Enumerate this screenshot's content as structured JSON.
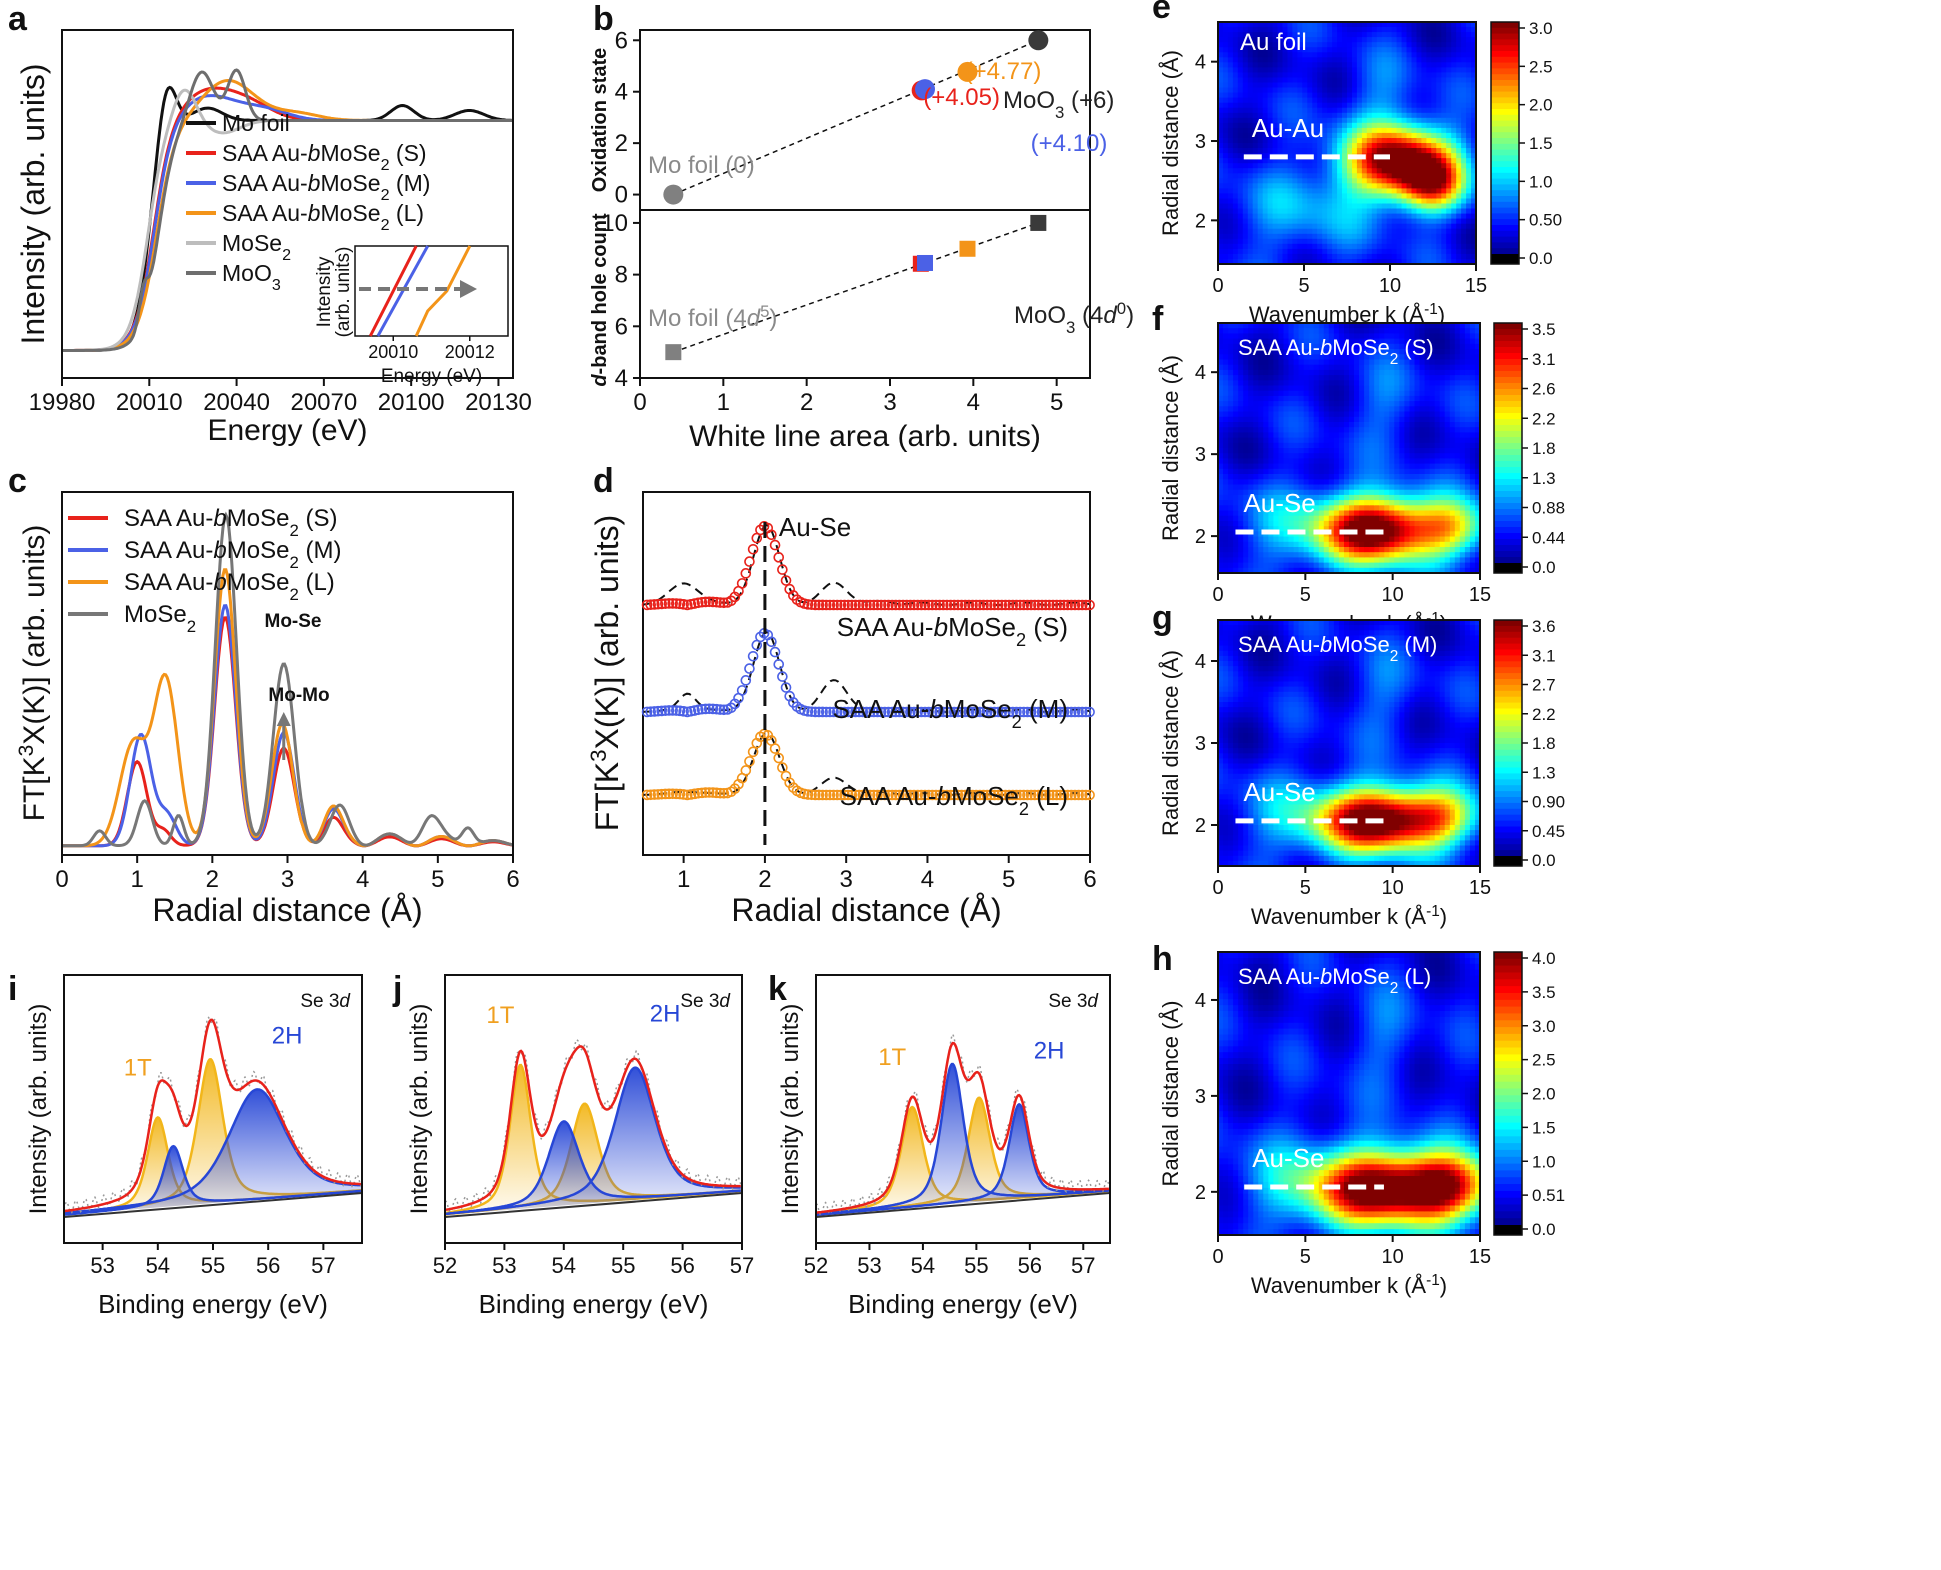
{
  "figure": {
    "panels": [
      "a",
      "b",
      "c",
      "d",
      "e",
      "f",
      "g",
      "h",
      "i",
      "j",
      "k"
    ]
  },
  "colors": {
    "red": "#e8221b",
    "blue": "#4b61e6",
    "orange": "#f39419",
    "gray_light": "#bdbdbd",
    "gray_dark": "#6e6e6e",
    "black": "#111111",
    "xps_gold": "#f2b61a",
    "xps_blue": "#2747d6"
  },
  "chart_data": [
    {
      "id": "a",
      "type": "line",
      "letter": "a",
      "xlabel": "Energy (eV)",
      "ylabel": "Intensity (arb. units)",
      "xticks": [
        "19980",
        "20010",
        "20040",
        "20070",
        "20100",
        "20130"
      ],
      "xlim": [
        19980,
        20135
      ],
      "legend": [
        "Mo foil",
        "SAA Au-bMoSe2 (S)",
        "SAA Au-bMoSe2 (M)",
        "SAA Au-bMoSe2 (L)",
        "MoSe2",
        "MoO3"
      ],
      "legend_display": [
        {
          "pre": "Mo foil",
          "sub": "",
          "post": ""
        },
        {
          "pre": "SAA Au-",
          "it": "b",
          "mid": "MoSe",
          "sub": "2",
          "post": " (S)"
        },
        {
          "pre": "SAA Au-",
          "it": "b",
          "mid": "MoSe",
          "sub": "2",
          "post": " (M)"
        },
        {
          "pre": "SAA Au-",
          "it": "b",
          "mid": "MoSe",
          "sub": "2",
          "post": " (L)"
        },
        {
          "pre": "MoSe",
          "sub": "2",
          "post": ""
        },
        {
          "pre": "MoO",
          "sub": "3",
          "post": ""
        }
      ],
      "inset": {
        "xlabel": "Energy (eV)",
        "ylabel": "Intensity (arb. units)",
        "xticks": [
          "20010",
          "20012"
        ]
      }
    },
    {
      "id": "b",
      "type": "scatter",
      "letter": "b",
      "xlabel": "White line area (arb. units)",
      "xticks": [
        "0",
        "1",
        "2",
        "3",
        "4",
        "5"
      ],
      "xlim": [
        0,
        5.4
      ],
      "top": {
        "ylabel": "Oxidation state",
        "ylim": [
          -0.6,
          6.4
        ],
        "yticks": [
          "0",
          "2",
          "4",
          "6"
        ],
        "points": [
          {
            "name": "Mo foil",
            "x": 0.4,
            "y": 0
          },
          {
            "name": "SAA Au-bMoSe2 (S)",
            "x": 3.38,
            "y": 4.05
          },
          {
            "name": "SAA Au-bMoSe2 (M)",
            "x": 3.42,
            "y": 4.1
          },
          {
            "name": "SAA Au-bMoSe2 (L)",
            "x": 3.93,
            "y": 4.77
          },
          {
            "name": "MoO3",
            "x": 4.78,
            "y": 6
          }
        ],
        "labels": [
          "Mo foil (0)",
          "(+4.05)",
          "(+4.77)",
          "(+4.10)",
          "MoO3 (+6)"
        ]
      },
      "bottom": {
        "ylabel": "d-band hole count",
        "ylim": [
          4,
          10.5
        ],
        "yticks": [
          "4",
          "6",
          "8",
          "10"
        ],
        "points": [
          {
            "name": "Mo foil",
            "x": 0.4,
            "y": 5
          },
          {
            "name": "SAA Au-bMoSe2 (S)",
            "x": 3.37,
            "y": 8.42
          },
          {
            "name": "SAA Au-bMoSe2 (M)",
            "x": 3.42,
            "y": 8.45
          },
          {
            "name": "SAA Au-bMoSe2 (L)",
            "x": 3.93,
            "y": 9.0
          },
          {
            "name": "MoO3",
            "x": 4.78,
            "y": 10
          }
        ],
        "labels": [
          "Mo foil (4d5)",
          "MoO3 (4d0)"
        ]
      }
    },
    {
      "id": "c",
      "type": "line",
      "letter": "c",
      "xlabel": "Radial distance (Å)",
      "ylabel": "FT[K3X(K)] (arb. units)",
      "xticks": [
        "0",
        "1",
        "2",
        "3",
        "4",
        "5",
        "6"
      ],
      "xlim": [
        0,
        6
      ],
      "legend": [
        "SAA Au-bMoSe2 (S)",
        "SAA Au-bMoSe2 (M)",
        "SAA Au-bMoSe2 (L)",
        "MoSe2"
      ],
      "annotations": [
        "Mo-Se",
        "Mo-Mo"
      ]
    },
    {
      "id": "d",
      "type": "line",
      "letter": "d",
      "xlabel": "Radial distance (Å)",
      "ylabel": "FT[K3X(K)] (arb. units)",
      "xticks": [
        "1",
        "2",
        "3",
        "4",
        "5",
        "6"
      ],
      "xlim": [
        0.5,
        6
      ],
      "series": [
        "SAA Au-bMoSe2 (S)",
        "SAA Au-bMoSe2 (M)",
        "SAA Au-bMoSe2 (L)"
      ],
      "annotations": [
        "Au-Se"
      ]
    },
    {
      "id": "e",
      "type": "heatmap",
      "letter": "e",
      "title": "Au foil",
      "bond": "Au-Au",
      "bond_r": 2.8,
      "bond_k": [
        1.5,
        10
      ],
      "xlabel": "Wavenumber k (Å-1)",
      "ylabel": "Radial distance (Å)",
      "xticks": [
        "0",
        "5",
        "10",
        "15"
      ],
      "yticks": [
        "2",
        "3",
        "4"
      ],
      "xlim": [
        0,
        15
      ],
      "ylim": [
        1.45,
        4.5
      ],
      "colorbar": [
        "3.0",
        "2.5",
        "2.0",
        "1.5",
        "1.0",
        "0.50",
        "0.0"
      ],
      "peaks": [
        {
          "k": 10.5,
          "r": 2.75,
          "a": 1.0,
          "sk": 2.2,
          "sr": 0.32
        },
        {
          "k": 12.5,
          "r": 2.45,
          "a": 0.55,
          "sk": 1.3,
          "sr": 0.25
        }
      ]
    },
    {
      "id": "f",
      "type": "heatmap",
      "letter": "f",
      "title": "SAA Au-bMoSe2 (S)",
      "bond": "Au-Se",
      "bond_r": 2.05,
      "bond_k": [
        1,
        9.5
      ],
      "xlabel": "Wavenumber k (Å-1)",
      "ylabel": "Radial distance (Å)",
      "xticks": [
        "0",
        "5",
        "10",
        "15"
      ],
      "yticks": [
        "2",
        "3",
        "4"
      ],
      "xlim": [
        0,
        15
      ],
      "ylim": [
        1.55,
        4.6
      ],
      "colorbar": [
        "3.5",
        "3.1",
        "2.6",
        "2.2",
        "1.8",
        "1.3",
        "0.88",
        "0.44",
        "0.0"
      ],
      "peaks": [
        {
          "k": 9.2,
          "r": 2.08,
          "a": 1.0,
          "sk": 2.3,
          "sr": 0.28
        },
        {
          "k": 13.5,
          "r": 2.1,
          "a": 0.45,
          "sk": 1.5,
          "sr": 0.25
        }
      ]
    },
    {
      "id": "g",
      "type": "heatmap",
      "letter": "g",
      "title": "SAA Au-bMoSe2 (M)",
      "bond": "Au-Se",
      "bond_r": 2.05,
      "bond_k": [
        1,
        9.5
      ],
      "xlabel": "Wavenumber k (Å-1)",
      "ylabel": "Radial distance (Å)",
      "xticks": [
        "0",
        "5",
        "10",
        "15"
      ],
      "yticks": [
        "2",
        "3",
        "4"
      ],
      "xlim": [
        0,
        15
      ],
      "ylim": [
        1.5,
        4.5
      ],
      "colorbar": [
        "3.6",
        "3.1",
        "2.7",
        "2.2",
        "1.8",
        "1.3",
        "0.90",
        "0.45",
        "0.0"
      ],
      "peaks": [
        {
          "k": 9.3,
          "r": 2.06,
          "a": 1.0,
          "sk": 2.4,
          "sr": 0.27
        },
        {
          "k": 13.0,
          "r": 2.1,
          "a": 0.4,
          "sk": 1.6,
          "sr": 0.25
        }
      ]
    },
    {
      "id": "h",
      "type": "heatmap",
      "letter": "h",
      "title": "SAA Au-bMoSe2 (L)",
      "bond": "Au-Se",
      "bond_r": 2.05,
      "bond_k": [
        1.5,
        9.5
      ],
      "xlabel": "Wavenumber k (Å-1)",
      "ylabel": "Radial distance (Å)",
      "xticks": [
        "0",
        "5",
        "10",
        "15"
      ],
      "yticks": [
        "2",
        "3",
        "4"
      ],
      "xlim": [
        0,
        15
      ],
      "ylim": [
        1.55,
        4.5
      ],
      "colorbar": [
        "4.0",
        "3.5",
        "3.0",
        "2.5",
        "2.0",
        "1.5",
        "1.0",
        "0.51",
        "0.0"
      ],
      "peaks": [
        {
          "k": 9.6,
          "r": 2.04,
          "a": 1.0,
          "sk": 2.8,
          "sr": 0.27
        },
        {
          "k": 13.5,
          "r": 2.05,
          "a": 0.6,
          "sk": 1.8,
          "sr": 0.25
        }
      ]
    },
    {
      "id": "i",
      "type": "line",
      "letter": "i",
      "xlabel": "Binding energy (eV)",
      "ylabel": "Intensity (arb. units)",
      "xticks": [
        "53",
        "54",
        "55",
        "56",
        "57"
      ],
      "xlim": [
        52.3,
        57.7
      ],
      "tag": "Se 3d",
      "phase_1T": "1T",
      "phase_2H": "2H",
      "peaks": [
        {
          "c": 54.0,
          "h": 0.45,
          "w": 0.18,
          "t": "1T"
        },
        {
          "c": 54.95,
          "h": 0.72,
          "w": 0.22,
          "t": "1T"
        },
        {
          "c": 54.28,
          "h": 0.3,
          "w": 0.17,
          "t": "2H"
        },
        {
          "c": 55.8,
          "h": 0.55,
          "w": 0.5,
          "t": "2H"
        }
      ]
    },
    {
      "id": "j",
      "type": "line",
      "letter": "j",
      "xlabel": "Binding energy (eV)",
      "ylabel": "Intensity (arb. units)",
      "xticks": [
        "52",
        "53",
        "54",
        "55",
        "56",
        "57"
      ],
      "xlim": [
        52,
        57
      ],
      "tag": "Se 3d",
      "phase_1T": "1T",
      "phase_2H": "2H",
      "peaks": [
        {
          "c": 53.27,
          "h": 0.72,
          "w": 0.17,
          "t": "1T"
        },
        {
          "c": 54.35,
          "h": 0.5,
          "w": 0.22,
          "t": "1T"
        },
        {
          "c": 54.0,
          "h": 0.42,
          "w": 0.25,
          "t": "2H"
        },
        {
          "c": 55.2,
          "h": 0.66,
          "w": 0.33,
          "t": "2H"
        }
      ]
    },
    {
      "id": "k",
      "type": "line",
      "letter": "k",
      "xlabel": "Binding energy (eV)",
      "ylabel": "Intensity (arb. units)",
      "xticks": [
        "52",
        "53",
        "54",
        "55",
        "56",
        "57"
      ],
      "xlim": [
        52,
        57.5
      ],
      "tag": "Se 3d",
      "phase_1T": "1T",
      "phase_2H": "2H",
      "peaks": [
        {
          "c": 53.8,
          "h": 0.5,
          "w": 0.2,
          "t": "1T"
        },
        {
          "c": 55.05,
          "h": 0.52,
          "w": 0.2,
          "t": "1T"
        },
        {
          "c": 54.55,
          "h": 0.7,
          "w": 0.2,
          "t": "2H"
        },
        {
          "c": 55.8,
          "h": 0.47,
          "w": 0.18,
          "t": "2H"
        }
      ]
    }
  ]
}
